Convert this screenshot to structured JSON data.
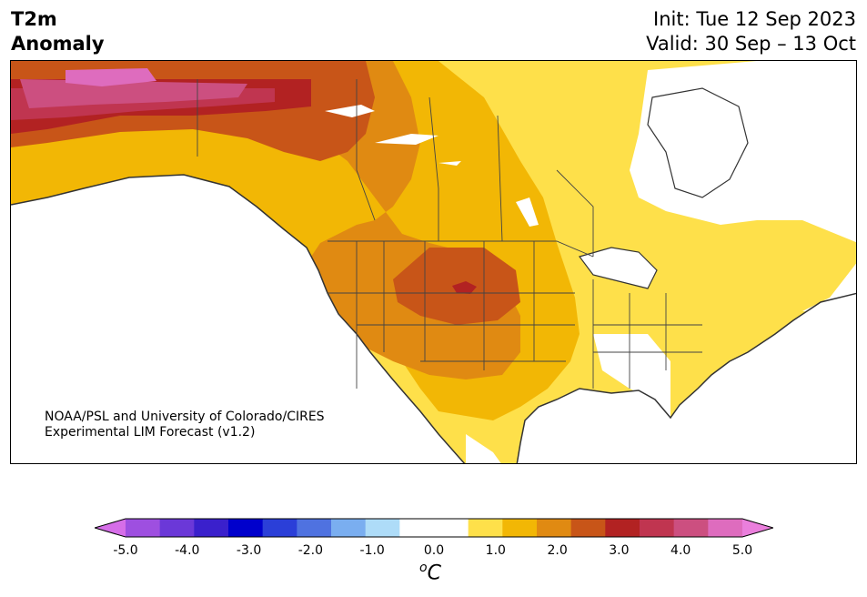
{
  "header": {
    "variable_line1": "T2m",
    "variable_line2": "Anomaly",
    "init": "Init: Tue 12 Sep 2023",
    "valid": "Valid: 30 Sep – 13 Oct"
  },
  "map": {
    "credit_line1": "NOAA/PSL and University of Colorado/CIRES",
    "credit_line2": "Experimental LIM Forecast (v1.2)"
  },
  "colorbar": {
    "unit_base": "C",
    "unit_super": "o",
    "ticks": [
      "-5.0",
      "-4.0",
      "-3.0",
      "-2.0",
      "-1.0",
      "0.0",
      "1.0",
      "2.0",
      "3.0",
      "4.0",
      "5.0"
    ],
    "colors": [
      "#d66ee8",
      "#9e4fe0",
      "#6b38d8",
      "#3a20cc",
      "#0000cc",
      "#2b3fd8",
      "#4f72e0",
      "#7aaef0",
      "#aedcf8",
      "#ffffff",
      "#ffffff",
      "#fee04a",
      "#f2b705",
      "#e08a12",
      "#c85518",
      "#b22222",
      "#c03550",
      "#cc4f80",
      "#de6cbe",
      "#ea7fdc"
    ]
  }
}
